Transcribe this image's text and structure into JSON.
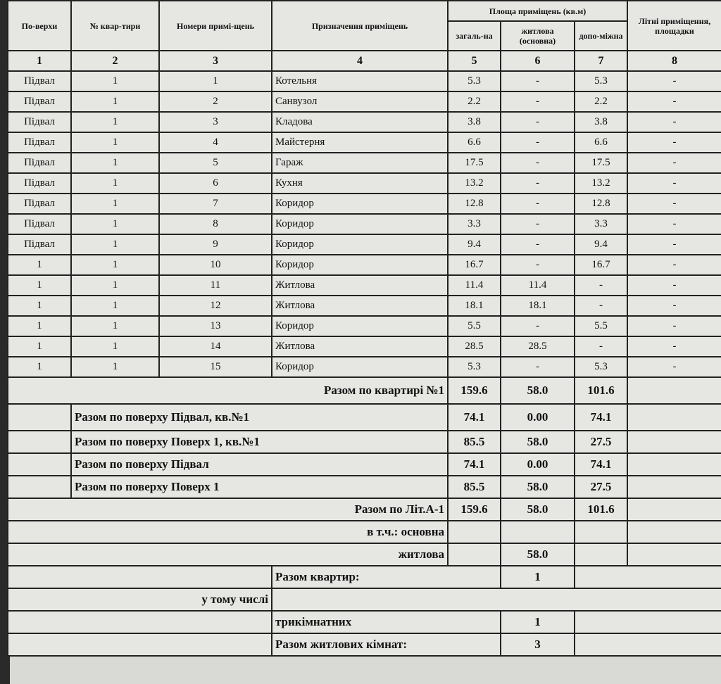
{
  "headers": {
    "floor": "По-верхи",
    "apt": "№ квар-тири",
    "room": "Номери примі-щень",
    "purpose": "Призначення приміщень",
    "area": "Площа приміщень (кв.м)",
    "total": "загаль-на",
    "living": "житлова (основна)",
    "aux": "допо-міжна",
    "summer": "Літні приміщення, площадки"
  },
  "col_numbers": [
    "1",
    "2",
    "3",
    "4",
    "5",
    "6",
    "7",
    "8"
  ],
  "rows": [
    [
      "Підвал",
      "1",
      "1",
      "Котельня",
      "5.3",
      "-",
      "5.3",
      "-"
    ],
    [
      "Підвал",
      "1",
      "2",
      "Санвузол",
      "2.2",
      "-",
      "2.2",
      "-"
    ],
    [
      "Підвал",
      "1",
      "3",
      "Кладова",
      "3.8",
      "-",
      "3.8",
      "-"
    ],
    [
      "Підвал",
      "1",
      "4",
      "Майстерня",
      "6.6",
      "-",
      "6.6",
      "-"
    ],
    [
      "Підвал",
      "1",
      "5",
      "Гараж",
      "17.5",
      "-",
      "17.5",
      "-"
    ],
    [
      "Підвал",
      "1",
      "6",
      "Кухня",
      "13.2",
      "-",
      "13.2",
      "-"
    ],
    [
      "Підвал",
      "1",
      "7",
      "Коридор",
      "12.8",
      "-",
      "12.8",
      "-"
    ],
    [
      "Підвал",
      "1",
      "8",
      "Коридор",
      "3.3",
      "-",
      "3.3",
      "-"
    ],
    [
      "Підвал",
      "1",
      "9",
      "Коридор",
      "9.4",
      "-",
      "9.4",
      "-"
    ],
    [
      "1",
      "1",
      "10",
      "Коридор",
      "16.7",
      "-",
      "16.7",
      "-"
    ],
    [
      "1",
      "1",
      "11",
      "Житлова",
      "11.4",
      "11.4",
      "-",
      "-"
    ],
    [
      "1",
      "1",
      "12",
      "Житлова",
      "18.1",
      "18.1",
      "-",
      "-"
    ],
    [
      "1",
      "1",
      "13",
      "Коридор",
      "5.5",
      "-",
      "5.5",
      "-"
    ],
    [
      "1",
      "1",
      "14",
      "Житлова",
      "28.5",
      "28.5",
      "-",
      "-"
    ],
    [
      "1",
      "1",
      "15",
      "Коридор",
      "5.3",
      "-",
      "5.3",
      "-"
    ]
  ],
  "totals": [
    {
      "label": "Разом по квартирі №1",
      "total": "159.6",
      "living": "58.0",
      "aux": "101.6",
      "align": "right"
    },
    {
      "label": "Разом по поверху Підвал, кв.№1",
      "total": "74.1",
      "living": "0.00",
      "aux": "74.1",
      "align": "left"
    },
    {
      "label": "Разом по поверху Поверх 1, кв.№1",
      "total": "85.5",
      "living": "58.0",
      "aux": "27.5",
      "align": "left"
    },
    {
      "label": "Разом по поверху Підвал",
      "total": "74.1",
      "living": "0.00",
      "aux": "74.1",
      "align": "left"
    },
    {
      "label": "Разом по поверху Поверх 1",
      "total": "85.5",
      "living": "58.0",
      "aux": "27.5",
      "align": "left"
    },
    {
      "label": "Разом по Літ.А-1",
      "total": "159.6",
      "living": "58.0",
      "aux": "101.6",
      "align": "right"
    }
  ],
  "incl": {
    "label": "в т.ч.: основна",
    "living_label": "житлова",
    "living": "58.0"
  },
  "apartments": {
    "label": "Разом квартир:",
    "value": "1",
    "including": "у тому числі",
    "three_room": "трикімнатних",
    "three_room_value": "1",
    "rooms_label": "Разом житлових кімнат:",
    "rooms_value": "3"
  }
}
